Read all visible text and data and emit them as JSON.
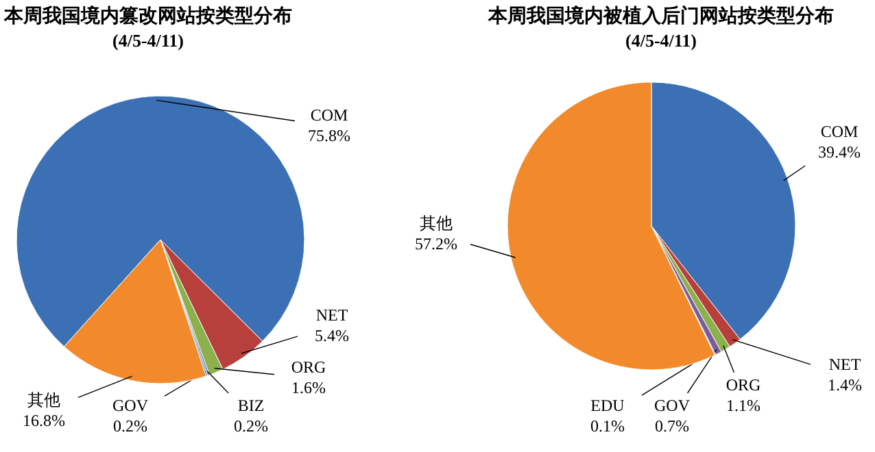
{
  "chart_data": [
    {
      "type": "pie",
      "title": "本周我国境内篡改网站按类型分布",
      "subtitle": "(4/5-4/11)",
      "categories": [
        "COM",
        "NET",
        "ORG",
        "BIZ",
        "GOV",
        "其他"
      ],
      "values": [
        75.8,
        5.4,
        1.6,
        0.2,
        0.2,
        16.8
      ],
      "value_labels": [
        "75.8%",
        "5.4%",
        "1.6%",
        "0.2%",
        "0.2%",
        "16.8%"
      ],
      "colors": [
        "#3c70b4",
        "#b8403c",
        "#8cb04c",
        "#7a5c9c",
        "#3ea6c4",
        "#f28a2c"
      ]
    },
    {
      "type": "pie",
      "title": "本周我国境内被植入后门网站按类型分布",
      "subtitle": "(4/5-4/11)",
      "categories": [
        "COM",
        "NET",
        "ORG",
        "GOV",
        "EDU",
        "其他"
      ],
      "values": [
        39.4,
        1.4,
        1.1,
        0.7,
        0.1,
        57.2
      ],
      "value_labels": [
        "39.4%",
        "1.4%",
        "1.1%",
        "0.7%",
        "0.1%",
        "57.2%"
      ],
      "colors": [
        "#3c70b4",
        "#b8403c",
        "#8cb04c",
        "#7a5c9c",
        "#3ea6c4",
        "#f28a2c"
      ]
    }
  ]
}
